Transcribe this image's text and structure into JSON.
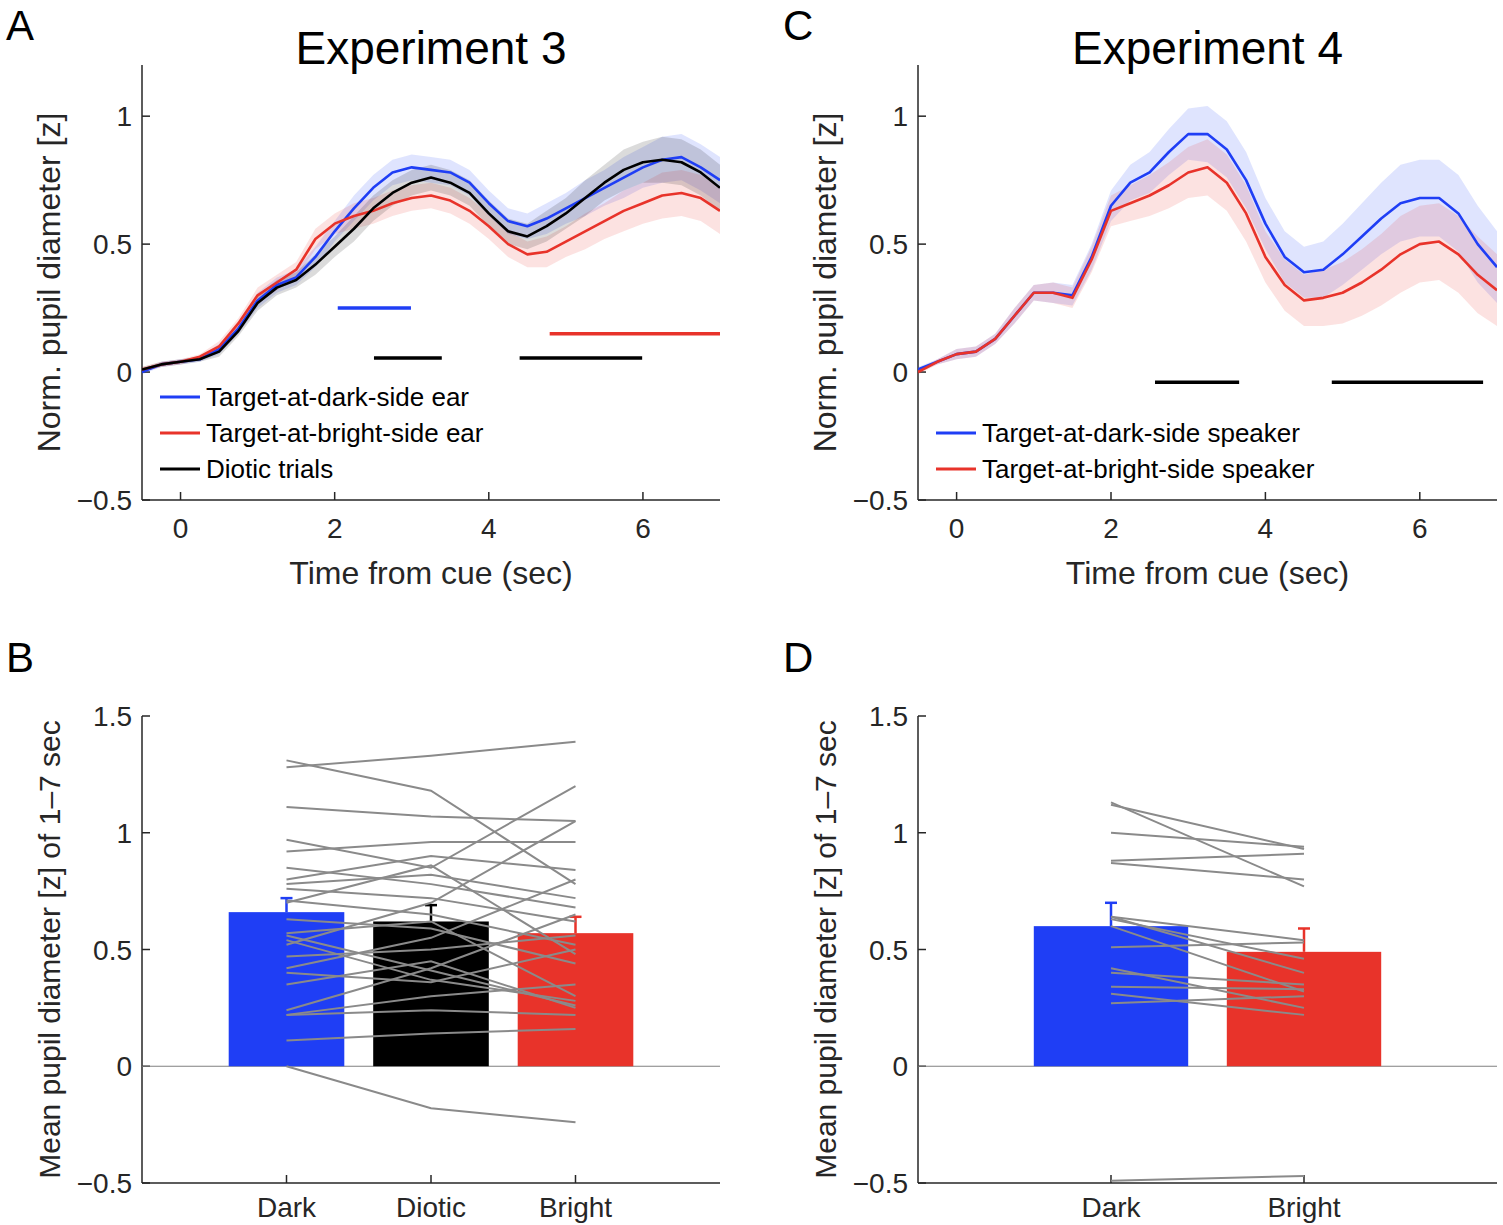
{
  "chart_data": [
    {
      "type": "line",
      "panel_label": "A",
      "title": "Experiment 3",
      "x_label": "Time from cue (sec)",
      "y_label": "Norm. pupil diameter [z]",
      "xlim": [
        -0.5,
        7
      ],
      "ylim": [
        -0.5,
        1.2
      ],
      "xticks": [
        0,
        2,
        4,
        6
      ],
      "yticks": [
        {
          "value": -0.5,
          "label": "−0.5"
        },
        0,
        0.5,
        1
      ],
      "legend": "lower left",
      "x": [
        -0.5,
        -0.25,
        0,
        0.25,
        0.5,
        0.75,
        1,
        1.25,
        1.5,
        1.75,
        2,
        2.25,
        2.5,
        2.75,
        3,
        3.25,
        3.5,
        3.75,
        4,
        4.25,
        4.5,
        4.75,
        5,
        5.25,
        5.5,
        5.75,
        6,
        6.25,
        6.5,
        6.75,
        7
      ],
      "series": [
        {
          "name": "Target-at-dark-side ear",
          "color": "#1f3ef5",
          "values": [
            0.0,
            0.03,
            0.04,
            0.05,
            0.09,
            0.17,
            0.28,
            0.34,
            0.37,
            0.45,
            0.55,
            0.64,
            0.72,
            0.78,
            0.8,
            0.79,
            0.78,
            0.74,
            0.66,
            0.59,
            0.57,
            0.6,
            0.64,
            0.68,
            0.72,
            0.76,
            0.8,
            0.83,
            0.84,
            0.8,
            0.75
          ],
          "error": [
            0.01,
            0.01,
            0.01,
            0.01,
            0.02,
            0.02,
            0.03,
            0.03,
            0.03,
            0.04,
            0.04,
            0.05,
            0.05,
            0.05,
            0.05,
            0.05,
            0.05,
            0.05,
            0.05,
            0.05,
            0.05,
            0.06,
            0.06,
            0.07,
            0.07,
            0.08,
            0.08,
            0.09,
            0.09,
            0.09,
            0.09
          ]
        },
        {
          "name": "Target-at-bright-side ear",
          "color": "#e8332a",
          "values": [
            0.01,
            0.03,
            0.04,
            0.06,
            0.1,
            0.19,
            0.3,
            0.35,
            0.4,
            0.52,
            0.58,
            0.61,
            0.63,
            0.66,
            0.68,
            0.69,
            0.67,
            0.63,
            0.57,
            0.5,
            0.46,
            0.47,
            0.51,
            0.55,
            0.59,
            0.63,
            0.66,
            0.69,
            0.7,
            0.68,
            0.63
          ],
          "error": [
            0.01,
            0.01,
            0.01,
            0.01,
            0.02,
            0.02,
            0.03,
            0.03,
            0.03,
            0.04,
            0.04,
            0.05,
            0.05,
            0.05,
            0.05,
            0.05,
            0.05,
            0.05,
            0.05,
            0.05,
            0.05,
            0.06,
            0.06,
            0.07,
            0.07,
            0.08,
            0.08,
            0.09,
            0.09,
            0.09,
            0.09
          ]
        },
        {
          "name": "Diotic trials",
          "color": "#000000",
          "values": [
            0.01,
            0.03,
            0.04,
            0.05,
            0.08,
            0.16,
            0.27,
            0.33,
            0.36,
            0.42,
            0.49,
            0.56,
            0.64,
            0.7,
            0.74,
            0.76,
            0.74,
            0.7,
            0.62,
            0.55,
            0.53,
            0.57,
            0.62,
            0.68,
            0.74,
            0.79,
            0.82,
            0.83,
            0.82,
            0.78,
            0.72
          ],
          "error": [
            0.01,
            0.01,
            0.01,
            0.01,
            0.02,
            0.02,
            0.03,
            0.03,
            0.03,
            0.04,
            0.04,
            0.05,
            0.05,
            0.05,
            0.05,
            0.05,
            0.05,
            0.05,
            0.05,
            0.05,
            0.05,
            0.06,
            0.06,
            0.07,
            0.07,
            0.08,
            0.08,
            0.09,
            0.09,
            0.09,
            0.09
          ]
        }
      ],
      "significance": [
        {
          "color": "#1f3ef5",
          "y": 0.25,
          "x_start": 2.04,
          "x_end": 2.99
        },
        {
          "color": "#000000",
          "y": 0.055,
          "x_start": 2.51,
          "x_end": 3.39
        },
        {
          "color": "#000000",
          "y": 0.055,
          "x_start": 4.4,
          "x_end": 5.99
        },
        {
          "color": "#e8332a",
          "y": 0.15,
          "x_start": 4.79,
          "x_end": 7.0
        }
      ]
    },
    {
      "type": "bar",
      "panel_label": "B",
      "y_label": "Mean pupil diameter [z] of 1–7 sec",
      "categories": [
        "Dark",
        "Diotic",
        "Bright"
      ],
      "values": [
        0.66,
        0.62,
        0.57
      ],
      "errors": [
        0.06,
        0.07,
        0.07
      ],
      "colors": [
        "#1f3ef5",
        "#000000",
        "#e8332a"
      ],
      "ylim": [
        -0.5,
        1.5
      ],
      "yticks": [
        {
          "value": -0.5,
          "label": "−0.5"
        },
        0,
        0.5,
        1,
        1.5
      ],
      "individual": [
        [
          1.31,
          1.18,
          0.78
        ],
        [
          1.28,
          1.33,
          1.39
        ],
        [
          1.11,
          1.07,
          1.05
        ],
        [
          0.97,
          0.85,
          1.2
        ],
        [
          0.92,
          0.96,
          0.96
        ],
        [
          0.8,
          0.9,
          0.84
        ],
        [
          0.78,
          0.82,
          0.72
        ],
        [
          0.76,
          0.72,
          0.62
        ],
        [
          0.71,
          0.65,
          0.52
        ],
        [
          0.63,
          0.59,
          0.44
        ],
        [
          0.56,
          0.41,
          0.26
        ],
        [
          0.54,
          0.37,
          0.28
        ],
        [
          0.52,
          0.7,
          1.05
        ],
        [
          0.47,
          0.5,
          0.56
        ],
        [
          0.42,
          0.55,
          0.8
        ],
        [
          0.4,
          0.36,
          0.5
        ],
        [
          0.35,
          0.45,
          0.25
        ],
        [
          0.24,
          0.42,
          0.65
        ],
        [
          0.22,
          0.24,
          0.22
        ],
        [
          0.22,
          0.3,
          0.35
        ],
        [
          0.11,
          0.14,
          0.16
        ],
        [
          0.0,
          -0.18,
          -0.24
        ],
        [
          0.57,
          0.62,
          0.3
        ],
        [
          0.7,
          0.86,
          0.48
        ],
        [
          0.85,
          0.78,
          0.68
        ]
      ]
    },
    {
      "type": "line",
      "panel_label": "C",
      "title": "Experiment 4",
      "x_label": "Time from cue (sec)",
      "y_label": "Norm. pupil diameter [z]",
      "xlim": [
        -0.5,
        7
      ],
      "ylim": [
        -0.5,
        1.2
      ],
      "xticks": [
        0,
        2,
        4,
        6
      ],
      "yticks": [
        {
          "value": -0.5,
          "label": "−0.5"
        },
        0,
        0.5,
        1
      ],
      "legend": "lower left",
      "x": [
        -0.5,
        -0.25,
        0,
        0.25,
        0.5,
        0.75,
        1,
        1.25,
        1.5,
        1.75,
        2,
        2.25,
        2.5,
        2.75,
        3,
        3.25,
        3.5,
        3.75,
        4,
        4.25,
        4.5,
        4.75,
        5,
        5.25,
        5.5,
        5.75,
        6,
        6.25,
        6.5,
        6.75,
        7
      ],
      "series": [
        {
          "name": "Target-at-dark-side speaker",
          "color": "#1f3ef5",
          "values": [
            0.01,
            0.04,
            0.07,
            0.08,
            0.13,
            0.22,
            0.31,
            0.31,
            0.3,
            0.45,
            0.65,
            0.74,
            0.78,
            0.86,
            0.93,
            0.93,
            0.87,
            0.75,
            0.58,
            0.45,
            0.39,
            0.4,
            0.46,
            0.53,
            0.6,
            0.66,
            0.68,
            0.68,
            0.62,
            0.5,
            0.41
          ],
          "error": [
            0.01,
            0.01,
            0.02,
            0.02,
            0.02,
            0.03,
            0.03,
            0.04,
            0.04,
            0.05,
            0.06,
            0.07,
            0.08,
            0.09,
            0.1,
            0.11,
            0.11,
            0.11,
            0.1,
            0.1,
            0.1,
            0.11,
            0.12,
            0.13,
            0.14,
            0.15,
            0.15,
            0.15,
            0.15,
            0.15,
            0.14
          ]
        },
        {
          "name": "Target-at-bright-side speaker",
          "color": "#e8332a",
          "values": [
            0.0,
            0.04,
            0.07,
            0.08,
            0.13,
            0.22,
            0.31,
            0.31,
            0.29,
            0.44,
            0.63,
            0.66,
            0.69,
            0.73,
            0.78,
            0.8,
            0.74,
            0.62,
            0.45,
            0.34,
            0.28,
            0.29,
            0.31,
            0.35,
            0.4,
            0.46,
            0.5,
            0.51,
            0.46,
            0.38,
            0.32
          ],
          "error": [
            0.01,
            0.01,
            0.02,
            0.02,
            0.02,
            0.03,
            0.03,
            0.04,
            0.04,
            0.05,
            0.06,
            0.07,
            0.08,
            0.09,
            0.1,
            0.11,
            0.11,
            0.11,
            0.1,
            0.1,
            0.1,
            0.11,
            0.12,
            0.13,
            0.14,
            0.15,
            0.15,
            0.15,
            0.15,
            0.15,
            0.14
          ]
        }
      ],
      "significance": [
        {
          "color": "#000000",
          "y": -0.04,
          "x_start": 2.57,
          "x_end": 3.66
        },
        {
          "color": "#000000",
          "y": -0.04,
          "x_start": 4.86,
          "x_end": 6.82
        }
      ]
    },
    {
      "type": "bar",
      "panel_label": "D",
      "y_label": "Mean pupil diameter [z] of 1–7 sec",
      "categories": [
        "Dark",
        "Bright"
      ],
      "values": [
        0.6,
        0.49
      ],
      "errors": [
        0.1,
        0.1
      ],
      "colors": [
        "#1f3ef5",
        "#e8332a"
      ],
      "ylim": [
        -0.5,
        1.5
      ],
      "yticks": [
        {
          "value": -0.5,
          "label": "−0.5"
        },
        0,
        0.5,
        1,
        1.5
      ],
      "individual": [
        [
          1.13,
          0.77
        ],
        [
          1.12,
          0.93
        ],
        [
          1.0,
          0.94
        ],
        [
          0.88,
          0.91
        ],
        [
          0.87,
          0.8
        ],
        [
          0.64,
          0.54
        ],
        [
          0.63,
          0.46
        ],
        [
          0.6,
          0.32
        ],
        [
          0.51,
          0.53
        ],
        [
          0.42,
          0.25
        ],
        [
          0.4,
          0.35
        ],
        [
          0.34,
          0.33
        ],
        [
          0.31,
          0.22
        ],
        [
          0.27,
          0.3
        ],
        [
          0.64,
          0.4
        ],
        [
          -0.49,
          -0.47
        ]
      ]
    }
  ]
}
